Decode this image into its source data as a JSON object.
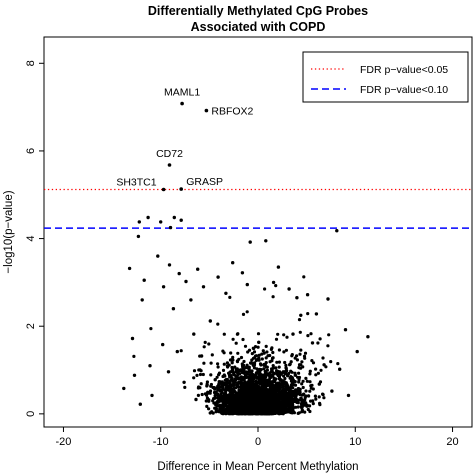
{
  "chart_data": {
    "type": "scatter",
    "title_line1": "Differentially Methylated CpG Probes",
    "title_line2": "Associated with COPD",
    "xlabel": "Difference in Mean Percent Methylation",
    "ylabel": "−log10(p−value)",
    "xlim": [
      -22,
      22
    ],
    "ylim": [
      -0.3,
      8.6
    ],
    "xticks": [
      -20,
      -10,
      0,
      10,
      20
    ],
    "yticks": [
      0,
      2,
      4,
      6,
      8
    ],
    "grid": false,
    "legend_position": "top-right",
    "legend": [
      {
        "label": "FDR p−value<0.05",
        "color": "#ff0000",
        "style": "dotted"
      },
      {
        "label": "FDR p−value<0.10",
        "color": "#0000ff",
        "style": "dashed"
      }
    ],
    "thresholds": [
      {
        "y": 5.12,
        "color": "#ff0000",
        "style": "dotted"
      },
      {
        "y": 4.24,
        "color": "#0000ff",
        "style": "dashed"
      }
    ],
    "labeled_points": [
      {
        "label": "MAML1",
        "x": -7.8,
        "y": 7.08
      },
      {
        "label": "RBFOX2",
        "x": -5.3,
        "y": 6.92
      },
      {
        "label": "CD72",
        "x": -9.1,
        "y": 5.68
      },
      {
        "label": "SH3TC1",
        "x": -9.7,
        "y": 5.12
      },
      {
        "label": "GRASP",
        "x": -7.9,
        "y": 5.13
      }
    ],
    "points": [
      [
        -12.2,
        4.38
      ],
      [
        -11.3,
        4.48
      ],
      [
        -8.6,
        4.48
      ],
      [
        -7.9,
        4.42
      ],
      [
        -10.0,
        4.38
      ],
      [
        -12.3,
        4.05
      ],
      [
        -9.0,
        4.25
      ],
      [
        8.1,
        4.18
      ],
      [
        -0.8,
        3.92
      ],
      [
        0.8,
        3.95
      ],
      [
        -13.2,
        3.32
      ],
      [
        -12.9,
        1.72
      ],
      [
        -11.7,
        3.05
      ],
      [
        -11.9,
        2.6
      ],
      [
        -12.7,
        0.88
      ],
      [
        -11.1,
        1.1
      ],
      [
        -10.3,
        3.6
      ],
      [
        -9.7,
        2.9
      ],
      [
        -9.1,
        3.4
      ],
      [
        -8.7,
        2.4
      ],
      [
        -8.1,
        3.2
      ],
      [
        -7.4,
        3.02
      ],
      [
        -6.9,
        2.6
      ],
      [
        -6.2,
        3.3
      ],
      [
        -5.6,
        2.9
      ],
      [
        -4.1,
        3.12
      ],
      [
        -3.3,
        2.75
      ],
      [
        -2.6,
        3.45
      ],
      [
        -1.6,
        3.22
      ],
      [
        -1.1,
        2.95
      ],
      [
        1.6,
        3.0
      ],
      [
        2.1,
        3.35
      ],
      [
        3.2,
        2.85
      ],
      [
        4.0,
        2.65
      ],
      [
        5.1,
        2.72
      ],
      [
        6.0,
        2.28
      ],
      [
        7.2,
        2.62
      ],
      [
        9.0,
        1.92
      ],
      [
        9.3,
        0.42
      ],
      [
        11.3,
        1.76
      ],
      [
        10.2,
        1.42
      ],
      [
        8.4,
        1.02
      ],
      [
        7.6,
        0.52
      ],
      [
        6.3,
        0.68
      ],
      [
        -13.8,
        0.58
      ],
      [
        -12.1,
        0.22
      ],
      [
        -10.9,
        0.42
      ],
      [
        -9.8,
        1.58
      ],
      [
        -9.2,
        0.96
      ],
      [
        -8.3,
        1.42
      ],
      [
        -7.6,
        0.72
      ],
      [
        5.6,
        1.62
      ],
      [
        6.8,
        1.12
      ],
      [
        4.8,
        0.32
      ],
      [
        -6.6,
        1.82
      ],
      [
        -5.8,
        1.32
      ],
      [
        -4.9,
        2.12
      ],
      [
        -4.4,
        0.78
      ],
      [
        3.6,
        1.82
      ],
      [
        4.4,
        2.25
      ]
    ]
  }
}
